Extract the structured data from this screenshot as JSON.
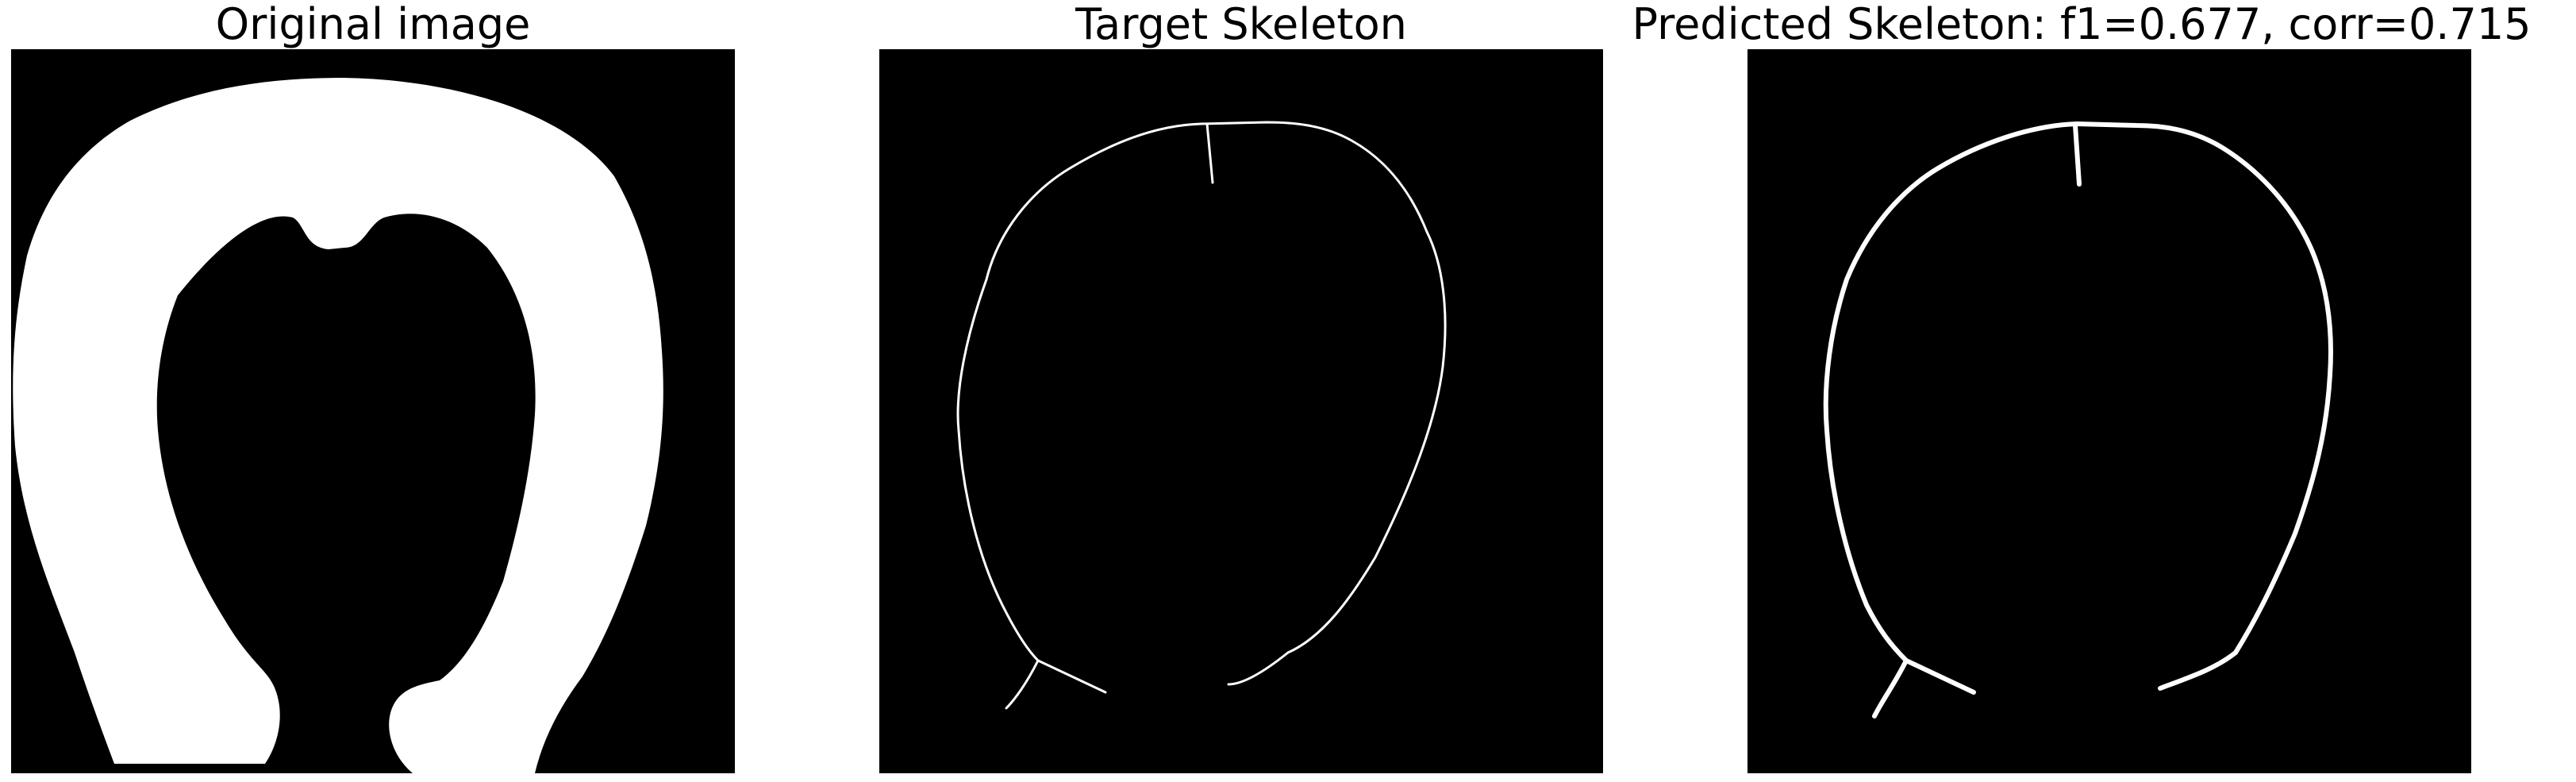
{
  "panels": [
    {
      "title": "Original image"
    },
    {
      "title": "Target Skeleton"
    },
    {
      "title": "Predicted Skeleton: f1=0.677, corr=0.715"
    }
  ],
  "colors": {
    "background": "#000000",
    "foreground": "#ffffff",
    "page": "#ffffff"
  }
}
